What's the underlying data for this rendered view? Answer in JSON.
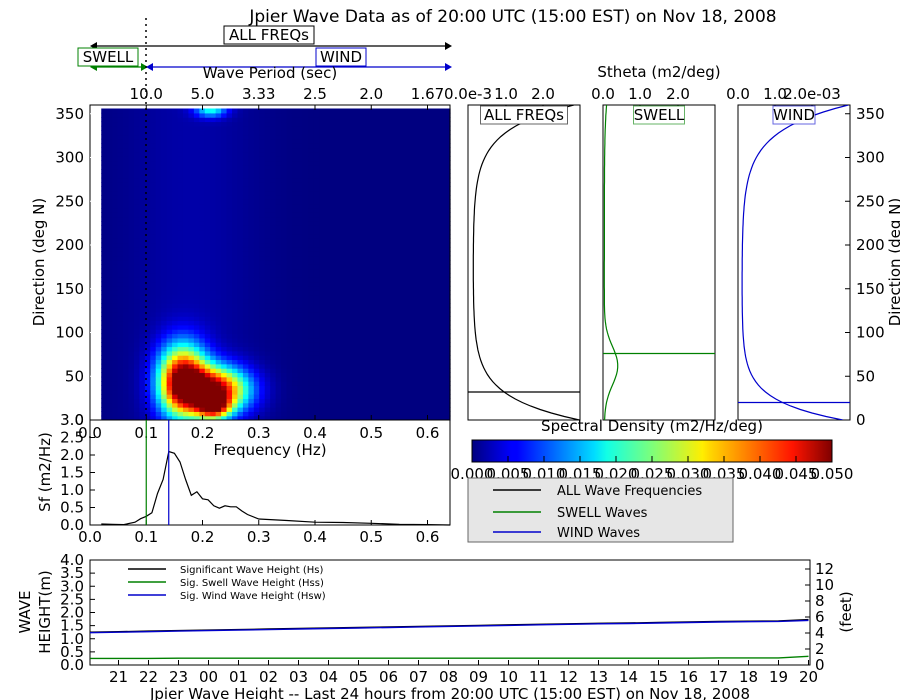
{
  "title": "Jpier Wave Data as of 20:00 UTC (15:00 EST) on Nov 18, 2008",
  "colors": {
    "all": "#000000",
    "swell": "#008000",
    "wind": "#0000cc",
    "panel_bg": "#e6e6e6",
    "jet_low": "#00007f",
    "jet_high": "#7f0000"
  },
  "bands": {
    "all_label": "ALL FREQs",
    "swell_label": "SWELL",
    "wind_label": "WIND"
  },
  "chart_data": [
    {
      "id": "spectrum",
      "type": "heatmap",
      "xlabel": "Frequency (Hz)",
      "ylabel": "Direction (deg N)",
      "top_xlabel": "Wave Period (sec)",
      "xlim": [
        0.0,
        0.64
      ],
      "ylim": [
        0,
        360
      ],
      "xticks": [
        "0.0",
        "0.1",
        "0.2",
        "0.3",
        "0.4",
        "0.5",
        "0.6"
      ],
      "yticks": [
        "0",
        "50",
        "100",
        "150",
        "200",
        "250",
        "300",
        "350"
      ],
      "period_ticks": [
        {
          "label": "10.0",
          "freq": 0.1
        },
        {
          "label": "5.0",
          "freq": 0.2
        },
        {
          "label": "3.33",
          "freq": 0.3
        },
        {
          "label": "2.5",
          "freq": 0.4
        },
        {
          "label": "2.0",
          "freq": 0.5
        },
        {
          "label": "1.67",
          "freq": 0.6
        }
      ],
      "swell_wind_separation": 0.1,
      "value_range": [
        0.0,
        0.05
      ],
      "blobs": [
        {
          "freq": 0.165,
          "dir": 45,
          "peak": 0.05,
          "sf": 0.03,
          "sd": 28
        },
        {
          "freq": 0.225,
          "dir": 35,
          "peak": 0.045,
          "sf": 0.04,
          "sd": 18
        },
        {
          "freq": 0.215,
          "dir": 355,
          "peak": 0.018,
          "sf": 0.02,
          "sd": 6
        },
        {
          "freq": 0.22,
          "dir": 15,
          "peak": 0.03,
          "sf": 0.02,
          "sd": 10
        }
      ]
    },
    {
      "id": "stheta_all",
      "type": "line",
      "label": "ALL FREQs",
      "xlabel": "Stheta (m2/deg)",
      "xticks": [
        "0.0",
        "1.0",
        "2.0"
      ],
      "tick_prefix": "e-3",
      "xlim": [
        0,
        3
      ],
      "ylim": [
        0,
        360
      ],
      "peak_direction": 32
    },
    {
      "id": "stheta_swell",
      "type": "line",
      "label": "SWELL",
      "xticks": [
        "0.0",
        "1.0",
        "2.0"
      ],
      "xlim": [
        0,
        3
      ],
      "ylim": [
        0,
        360
      ],
      "peak_direction": 76
    },
    {
      "id": "stheta_wind",
      "type": "line",
      "label": "WIND",
      "xticks": [
        "0.0",
        "1.0",
        "2.0e-03"
      ],
      "xlim": [
        0,
        3
      ],
      "ylim": [
        0,
        360
      ],
      "yticks": [
        "0",
        "50",
        "100",
        "150",
        "200",
        "250",
        "300",
        "350"
      ],
      "ylabel": "Direction (deg N)",
      "peak_direction": 20
    },
    {
      "id": "colorbar",
      "type": "heatmap",
      "title": "Spectral Density (m2/Hz/deg)",
      "ticks": [
        "0.000",
        "0.005",
        "0.010",
        "0.015",
        "0.020",
        "0.025",
        "0.030",
        "0.035",
        "0.040",
        "0.045",
        "0.050"
      ],
      "range": [
        0.0,
        0.05
      ]
    },
    {
      "id": "freq_spectrum",
      "type": "line",
      "xlabel": "Frequency (Hz)",
      "ylabel": "Sf (m2/Hz)",
      "xlim": [
        0.0,
        0.64
      ],
      "ylim": [
        0.0,
        3.0
      ],
      "xticks": [
        "0.0",
        "0.1",
        "0.2",
        "0.3",
        "0.4",
        "0.5",
        "0.6"
      ],
      "yticks": [
        "0.0",
        "0.5",
        "1.0",
        "1.5",
        "2.0",
        "2.5",
        "3.0"
      ],
      "swell_separation": 0.1,
      "wind_peak_freq": 0.14,
      "x": [
        0.02,
        0.04,
        0.06,
        0.08,
        0.09,
        0.1,
        0.11,
        0.12,
        0.13,
        0.14,
        0.15,
        0.16,
        0.17,
        0.18,
        0.19,
        0.2,
        0.21,
        0.22,
        0.23,
        0.24,
        0.25,
        0.26,
        0.27,
        0.28,
        0.3,
        0.35,
        0.4,
        0.45,
        0.5,
        0.55,
        0.6,
        0.64
      ],
      "y": [
        0.03,
        0.02,
        0.01,
        0.08,
        0.18,
        0.25,
        0.35,
        0.9,
        1.3,
        2.1,
        2.05,
        1.8,
        1.3,
        0.85,
        0.95,
        0.75,
        0.72,
        0.55,
        0.48,
        0.55,
        0.52,
        0.52,
        0.4,
        0.3,
        0.17,
        0.13,
        0.08,
        0.07,
        0.05,
        0.02,
        0.01,
        0.0
      ]
    },
    {
      "id": "wave_height",
      "type": "line",
      "xlabel": "Jpier Wave Height -- Last 24 hours from 20:00 UTC (15:00 EST) on Nov 18, 2008",
      "ylabel": "WAVE HEIGHT(m)",
      "ylabel_right": "(feet)",
      "ylim": [
        0.0,
        4.0
      ],
      "yticks": [
        "0.0",
        "0.5",
        "1.0",
        "1.5",
        "2.0",
        "2.5",
        "3.0",
        "3.5",
        "4.0"
      ],
      "yticks_right": [
        "0",
        "2",
        "4",
        "6",
        "8",
        "10",
        "12"
      ],
      "categories": [
        "21",
        "22",
        "23",
        "00",
        "01",
        "02",
        "03",
        "04",
        "05",
        "06",
        "07",
        "08",
        "09",
        "10",
        "11",
        "12",
        "13",
        "14",
        "15",
        "16",
        "17",
        "18",
        "19",
        "20"
      ],
      "series": [
        {
          "name": "Significant Wave Height (Hs)",
          "color": "#000000",
          "values": [
            1.27,
            1.29,
            1.31,
            1.33,
            1.35,
            1.37,
            1.39,
            1.41,
            1.43,
            1.45,
            1.47,
            1.49,
            1.51,
            1.53,
            1.55,
            1.57,
            1.59,
            1.6,
            1.62,
            1.64,
            1.66,
            1.67,
            1.68,
            1.73
          ]
        },
        {
          "name": "Sig. Swell Wave Height (Hss)",
          "color": "#008000",
          "values": [
            0.25,
            0.25,
            0.26,
            0.26,
            0.26,
            0.26,
            0.26,
            0.26,
            0.26,
            0.26,
            0.26,
            0.26,
            0.26,
            0.26,
            0.26,
            0.26,
            0.26,
            0.26,
            0.26,
            0.26,
            0.27,
            0.27,
            0.27,
            0.33
          ]
        },
        {
          "name": "Sig. Wind Wave Height (Hsw)",
          "color": "#0000cc",
          "values": [
            1.25,
            1.27,
            1.29,
            1.31,
            1.33,
            1.35,
            1.37,
            1.39,
            1.41,
            1.43,
            1.45,
            1.47,
            1.49,
            1.51,
            1.53,
            1.55,
            1.57,
            1.58,
            1.6,
            1.62,
            1.64,
            1.65,
            1.66,
            1.7
          ]
        }
      ]
    }
  ],
  "legend": {
    "all_label": "ALL Wave Frequencies",
    "swell_label": "SWELL Waves",
    "wind_label": "WIND Waves"
  }
}
